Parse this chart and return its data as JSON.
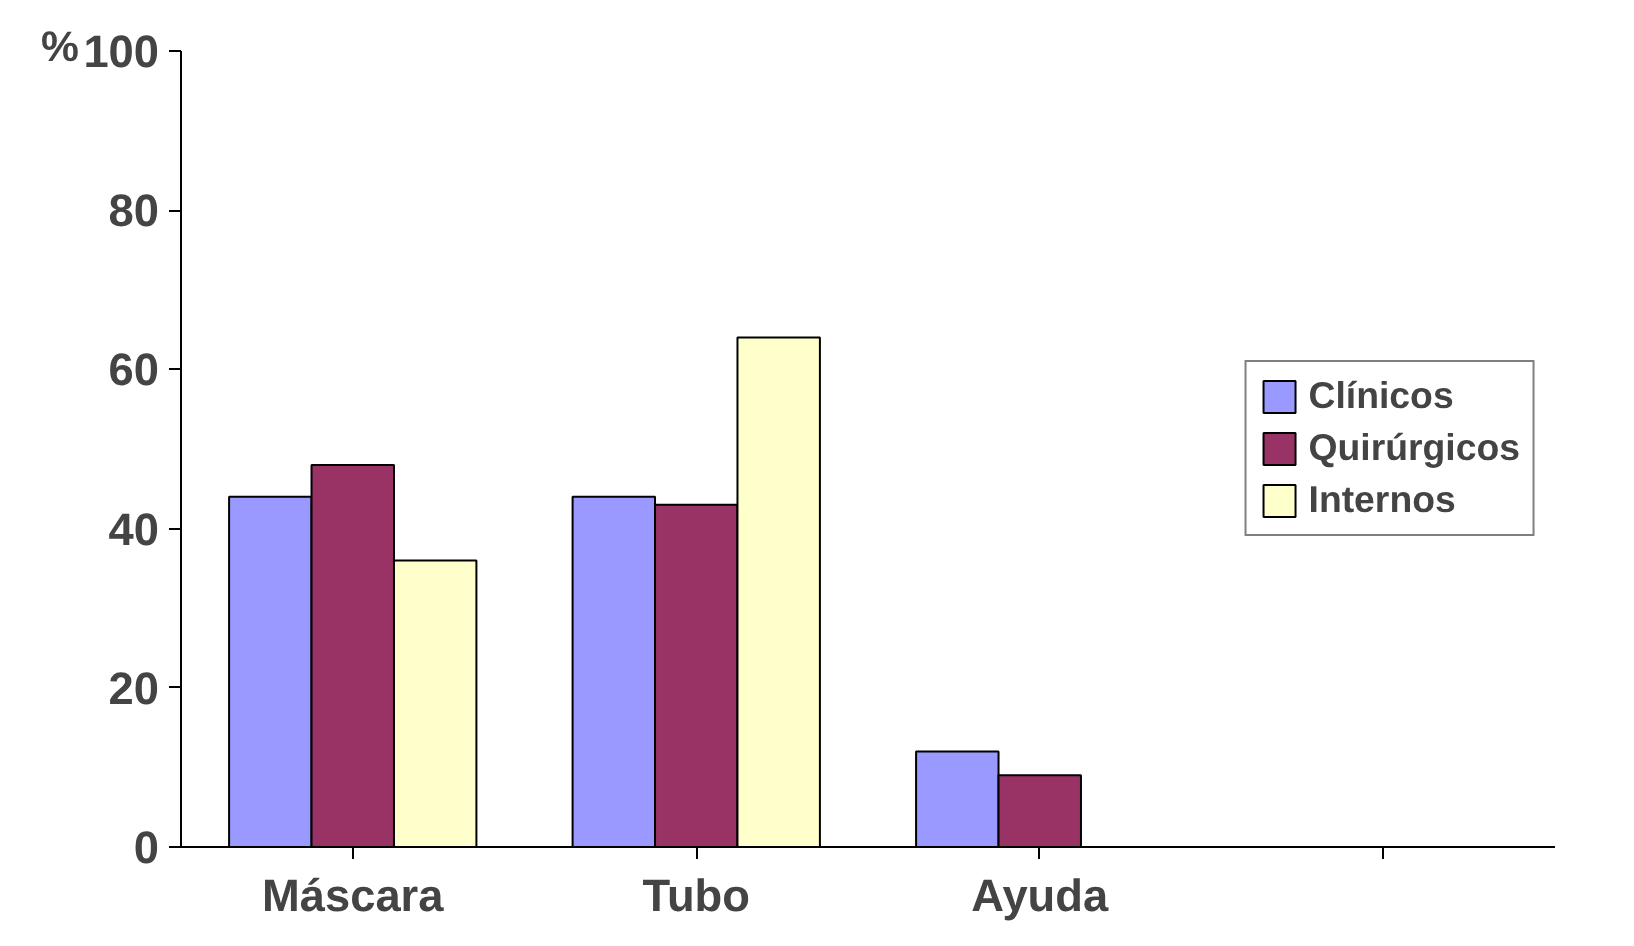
{
  "chart_data": {
    "type": "bar",
    "ylabel": "%",
    "categories": [
      "Máscara",
      "Tubo",
      "Ayuda",
      null
    ],
    "series": [
      {
        "name": "Clínicos",
        "color": "#9999ff",
        "values": [
          44,
          44,
          12,
          null
        ]
      },
      {
        "name": "Quirúrgicos",
        "color": "#993366",
        "values": [
          48,
          43,
          9,
          null
        ]
      },
      {
        "name": "Internos",
        "color": "#ffffcc",
        "values": [
          36,
          64,
          0,
          null
        ]
      }
    ],
    "ylim": [
      0,
      100
    ],
    "yticks": [
      0,
      20,
      40,
      60,
      80,
      100
    ],
    "grid": false,
    "legend": "right"
  }
}
